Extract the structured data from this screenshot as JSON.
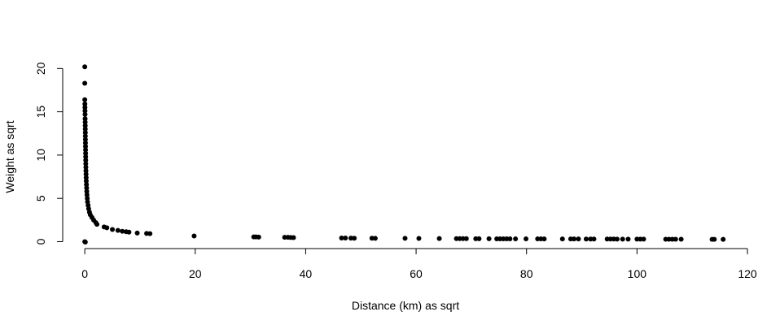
{
  "chart_data": {
    "type": "scatter",
    "title": "",
    "xlabel": "Distance (km) as sqrt",
    "ylabel": "Weight as sqrt",
    "xlim": [
      -4,
      120
    ],
    "ylim": [
      -0.8,
      20.5
    ],
    "xticks": [
      0,
      20,
      40,
      60,
      80,
      100,
      120
    ],
    "yticks": [
      0,
      5,
      10,
      15,
      20
    ],
    "grid": false,
    "legend": "none",
    "marker_color": "#000000",
    "series": [
      {
        "points": [
          [
            0,
            20.2
          ],
          [
            0,
            18.3
          ],
          [
            0,
            16.4
          ],
          [
            0.02,
            15.9
          ],
          [
            0.03,
            15.5
          ],
          [
            0.04,
            15.1
          ],
          [
            0.05,
            14.7
          ],
          [
            0.06,
            14.2
          ],
          [
            0.07,
            13.8
          ],
          [
            0.08,
            13.4
          ],
          [
            0.09,
            13.0
          ],
          [
            0.1,
            12.6
          ],
          [
            0.1,
            12.2
          ],
          [
            0.11,
            11.8
          ],
          [
            0.12,
            11.4
          ],
          [
            0.13,
            11.0
          ],
          [
            0.14,
            10.6
          ],
          [
            0.15,
            10.2
          ],
          [
            0.16,
            9.8
          ],
          [
            0.17,
            9.4
          ],
          [
            0.18,
            9.0
          ],
          [
            0.2,
            8.6
          ],
          [
            0.21,
            8.2
          ],
          [
            0.23,
            7.8
          ],
          [
            0.25,
            7.4
          ],
          [
            0.27,
            7.0
          ],
          [
            0.3,
            6.6
          ],
          [
            0.33,
            6.2
          ],
          [
            0.36,
            5.8
          ],
          [
            0.4,
            5.4
          ],
          [
            0.45,
            5.0
          ],
          [
            0.5,
            4.6
          ],
          [
            0.6,
            4.2
          ],
          [
            0.7,
            3.8
          ],
          [
            0.85,
            3.4
          ],
          [
            1.0,
            3.1
          ],
          [
            1.3,
            2.8
          ],
          [
            1.6,
            2.5
          ],
          [
            2.0,
            2.2
          ],
          [
            2.2,
            2.0
          ],
          [
            3.5,
            1.7
          ],
          [
            4.0,
            1.6
          ],
          [
            5.0,
            1.4
          ],
          [
            6.0,
            1.3
          ],
          [
            6.8,
            1.2
          ],
          [
            7.5,
            1.15
          ],
          [
            8.0,
            1.1
          ],
          [
            9.5,
            1.0
          ],
          [
            11.2,
            0.95
          ],
          [
            11.8,
            0.92
          ],
          [
            0,
            0
          ],
          [
            0.1,
            -0.05
          ],
          [
            19.8,
            0.65
          ],
          [
            30.6,
            0.55
          ],
          [
            31.0,
            0.55
          ],
          [
            31.5,
            0.52
          ],
          [
            36.2,
            0.5
          ],
          [
            36.8,
            0.5
          ],
          [
            37.3,
            0.48
          ],
          [
            37.8,
            0.47
          ],
          [
            46.5,
            0.42
          ],
          [
            47.2,
            0.42
          ],
          [
            48.2,
            0.41
          ],
          [
            48.8,
            0.4
          ],
          [
            52.0,
            0.4
          ],
          [
            52.6,
            0.39
          ],
          [
            58.0,
            0.38
          ],
          [
            60.5,
            0.37
          ],
          [
            64.2,
            0.36
          ],
          [
            67.3,
            0.35
          ],
          [
            67.9,
            0.35
          ],
          [
            68.5,
            0.35
          ],
          [
            69.1,
            0.35
          ],
          [
            70.8,
            0.34
          ],
          [
            71.4,
            0.34
          ],
          [
            73.2,
            0.34
          ],
          [
            74.6,
            0.33
          ],
          [
            75.2,
            0.33
          ],
          [
            75.8,
            0.33
          ],
          [
            76.4,
            0.33
          ],
          [
            77.0,
            0.33
          ],
          [
            78.0,
            0.32
          ],
          [
            79.9,
            0.32
          ],
          [
            82.0,
            0.32
          ],
          [
            82.6,
            0.32
          ],
          [
            83.2,
            0.31
          ],
          [
            86.5,
            0.31
          ],
          [
            88.0,
            0.31
          ],
          [
            88.6,
            0.31
          ],
          [
            89.4,
            0.31
          ],
          [
            90.8,
            0.3
          ],
          [
            91.6,
            0.3
          ],
          [
            92.2,
            0.3
          ],
          [
            94.6,
            0.3
          ],
          [
            95.2,
            0.3
          ],
          [
            95.8,
            0.3
          ],
          [
            96.4,
            0.29
          ],
          [
            97.4,
            0.29
          ],
          [
            98.4,
            0.29
          ],
          [
            100.0,
            0.29
          ],
          [
            100.6,
            0.29
          ],
          [
            101.2,
            0.29
          ],
          [
            105.2,
            0.28
          ],
          [
            105.8,
            0.28
          ],
          [
            106.4,
            0.28
          ],
          [
            107.0,
            0.28
          ],
          [
            108.0,
            0.28
          ],
          [
            113.6,
            0.27
          ],
          [
            114.0,
            0.27
          ],
          [
            115.6,
            0.27
          ]
        ]
      }
    ]
  }
}
